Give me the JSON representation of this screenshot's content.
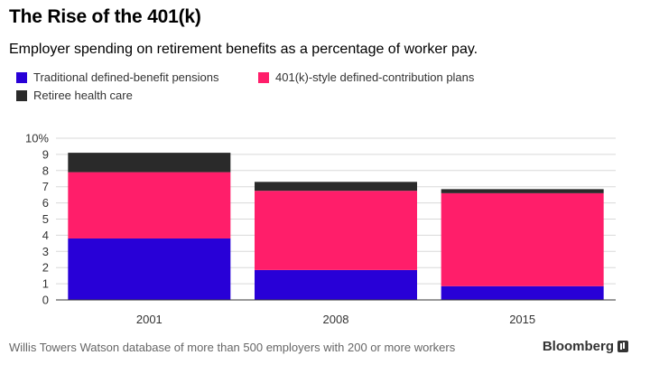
{
  "header": {
    "title": "The Rise of the 401(k)",
    "subtitle": "Employer spending on retirement benefits as a percentage of worker pay."
  },
  "footer": {
    "source": "Willis Towers Watson database of more than 500 employers with 200 or more workers",
    "brand": "Bloomberg"
  },
  "chart_data": {
    "type": "bar",
    "stacked": true,
    "categories": [
      "2001",
      "2008",
      "2015"
    ],
    "series": [
      {
        "name": "Traditional defined-benefit pensions",
        "color": "#2800d7",
        "values": [
          3.8,
          1.85,
          0.85
        ]
      },
      {
        "name": "401(k)-style defined-contribution plans",
        "color": "#ff1e6a",
        "values": [
          4.1,
          4.9,
          5.75
        ]
      },
      {
        "name": "Retiree health care",
        "color": "#2a2a2a",
        "values": [
          1.2,
          0.55,
          0.25
        ]
      }
    ],
    "ylim": [
      0,
      10
    ],
    "yticks": [
      0,
      1,
      2,
      3,
      4,
      5,
      6,
      7,
      8,
      9,
      10
    ],
    "ytick_labels": [
      "0",
      "1",
      "2",
      "3",
      "4",
      "5",
      "6",
      "7",
      "8",
      "9",
      "10%"
    ],
    "grid": true,
    "legend_position": "top-left"
  }
}
